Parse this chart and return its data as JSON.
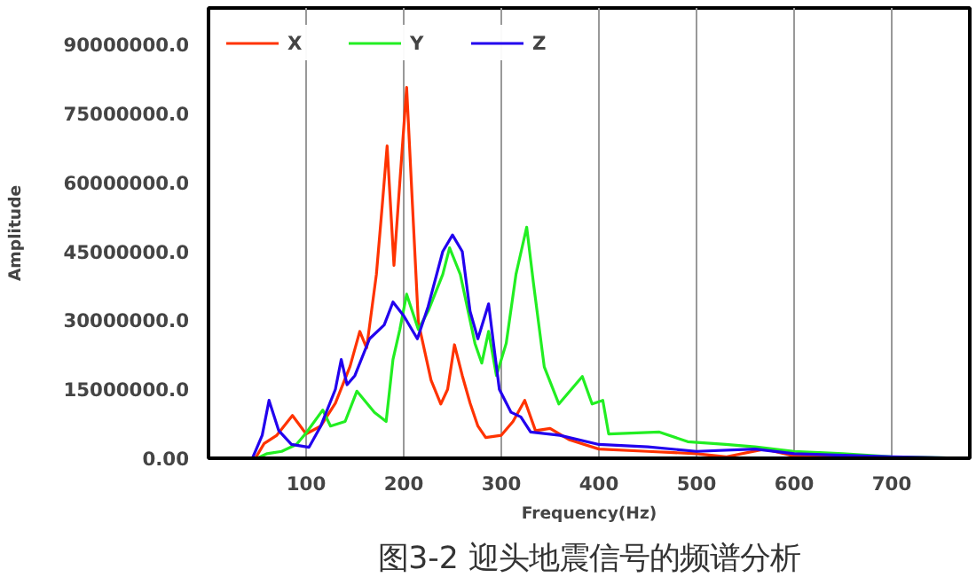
{
  "chart_data": {
    "type": "line",
    "title": "图3-2 迎头地震信号的频谱分析",
    "xlabel": "Frequency(Hz)",
    "ylabel": "Amplitude",
    "xlim": [
      0,
      780
    ],
    "ylim": [
      0,
      98000000
    ],
    "xticks": [
      100,
      200,
      300,
      400,
      500,
      600,
      700
    ],
    "yticks": [
      {
        "value": 0,
        "label": "0.00"
      },
      {
        "value": 15000000,
        "label": "15000000.0"
      },
      {
        "value": 30000000,
        "label": "30000000.0"
      },
      {
        "value": 45000000,
        "label": "45000000.0"
      },
      {
        "value": 60000000,
        "label": "60000000.0"
      },
      {
        "value": 75000000,
        "label": "75000000.0"
      },
      {
        "value": 90000000,
        "label": "90000000.0"
      }
    ],
    "grid": "x",
    "legend": "top",
    "marker": "none",
    "line_style": "solid",
    "series": [
      {
        "name": "X",
        "color": "#ff3300",
        "x": [
          0,
          48,
          57,
          70,
          86,
          100,
          115,
          130,
          145,
          155,
          162,
          172,
          178,
          183,
          190,
          196,
          203,
          209,
          215,
          228,
          238,
          245,
          252,
          260,
          268,
          276,
          284,
          300,
          312,
          324,
          335,
          350,
          370,
          400,
          450,
          500,
          530,
          570,
          600,
          700,
          780
        ],
        "values": [
          0,
          0,
          3200000,
          5000000,
          9300000,
          5300000,
          7000000,
          12000000,
          20000000,
          27600000,
          24000000,
          40000000,
          55000000,
          68000000,
          42000000,
          60000000,
          80700000,
          55000000,
          29600000,
          17000000,
          11800000,
          15000000,
          24700000,
          18000000,
          12000000,
          7000000,
          4500000,
          5000000,
          8000000,
          12600000,
          6000000,
          6500000,
          4000000,
          2000000,
          1500000,
          1000000,
          300000,
          2000000,
          500000,
          200000,
          0
        ]
      },
      {
        "name": "Y",
        "color": "#22ee22",
        "x": [
          0,
          50,
          60,
          75,
          90,
          100,
          117,
          125,
          140,
          152,
          170,
          182,
          189,
          196,
          203,
          215,
          225,
          240,
          247,
          258,
          268,
          273,
          280,
          287,
          295,
          305,
          315,
          326,
          333,
          344,
          359,
          383,
          393,
          404,
          410,
          462,
          491,
          530,
          560,
          600,
          650,
          700,
          780
        ],
        "values": [
          0,
          0,
          1000000,
          1500000,
          3000000,
          5500000,
          10500000,
          7000000,
          8000000,
          14600000,
          10000000,
          8000000,
          21500000,
          28000000,
          35700000,
          28000000,
          32000000,
          40000000,
          45800000,
          40000000,
          30000000,
          25000000,
          20700000,
          27600000,
          18000000,
          25000000,
          40000000,
          50300000,
          38000000,
          19900000,
          11800000,
          17800000,
          11800000,
          12600000,
          5300000,
          5700000,
          3600000,
          3000000,
          2500000,
          1500000,
          1000000,
          300000,
          0
        ]
      },
      {
        "name": "Z",
        "color": "#2200ee",
        "x": [
          0,
          45,
          55,
          62,
          72,
          85,
          103,
          115,
          130,
          136,
          142,
          150,
          165,
          180,
          189,
          200,
          214,
          225,
          240,
          250,
          260,
          268,
          276,
          287,
          292,
          298,
          310,
          320,
          330,
          360,
          400,
          450,
          500,
          560,
          600,
          700,
          780
        ],
        "values": [
          0,
          0,
          5000000,
          12600000,
          6000000,
          3000000,
          2400000,
          7000000,
          15000000,
          21500000,
          16000000,
          18000000,
          26000000,
          29000000,
          34000000,
          31000000,
          26000000,
          33000000,
          45000000,
          48600000,
          45000000,
          32000000,
          26000000,
          33600000,
          25000000,
          15000000,
          10000000,
          9000000,
          5700000,
          5000000,
          3000000,
          2500000,
          1500000,
          2000000,
          1000000,
          300000,
          0
        ]
      }
    ]
  }
}
